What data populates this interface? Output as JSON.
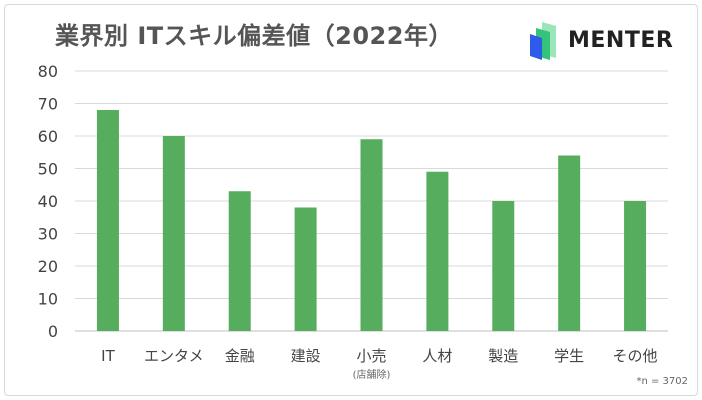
{
  "brand": {
    "name": "MENTER",
    "logo_colors": [
      "#2f5bea",
      "#35c27a",
      "#9be6b8"
    ]
  },
  "footnote": "*n = 3702",
  "colors": {
    "bar": "#56ad5d",
    "grid": "#d9d9d9",
    "axis": "#bfbfbf"
  },
  "chart_data": {
    "type": "bar",
    "title": "業界別 ITスキル偏差値（2022年）",
    "categories": [
      "IT",
      "エンタメ",
      "金融",
      "建設",
      "小売",
      "人材",
      "製造",
      "学生",
      "その他"
    ],
    "category_notes": [
      "",
      "",
      "",
      "",
      "(店舗除)",
      "",
      "",
      "",
      ""
    ],
    "values": [
      68,
      60,
      43,
      38,
      59,
      49,
      40,
      54,
      40
    ],
    "ylim": [
      0,
      80
    ],
    "yticks": [
      0,
      10,
      20,
      30,
      40,
      50,
      60,
      70,
      80
    ],
    "grid": true,
    "legend": "none"
  }
}
